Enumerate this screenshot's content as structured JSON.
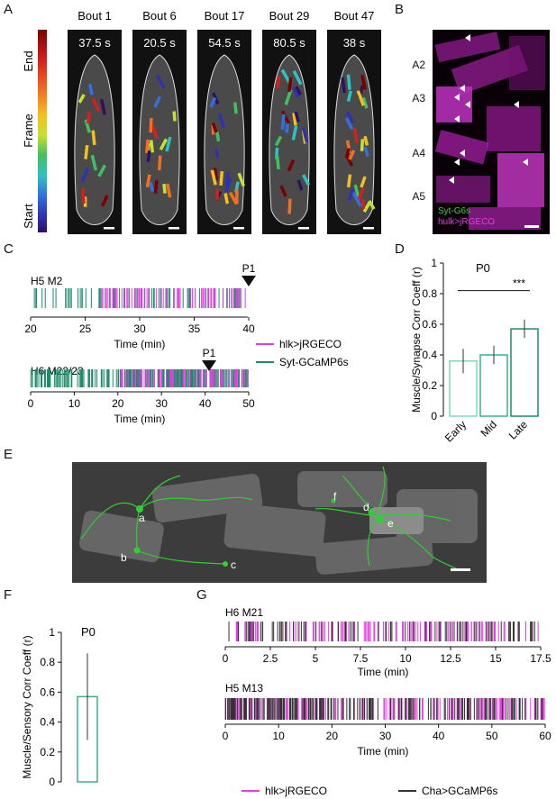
{
  "panels": {
    "A": {
      "label": "A",
      "colorbar": {
        "end": "End",
        "frame": "Frame",
        "start": "Start",
        "colors": [
          "#7a0000",
          "#d42020",
          "#f07020",
          "#f2c020",
          "#c8e030",
          "#40c060",
          "#30c0c0",
          "#3070e0",
          "#3030b0",
          "#301060"
        ]
      },
      "bouts": [
        {
          "title": "Bout 1",
          "time": "37.5 s"
        },
        {
          "title": "Bout 6",
          "time": "20.5 s"
        },
        {
          "title": "Bout 17",
          "time": "54.5 s"
        },
        {
          "title": "Bout 29",
          "time": "80.5 s"
        },
        {
          "title": "Bout 47",
          "time": "38 s"
        }
      ]
    },
    "B": {
      "label": "B",
      "segments": [
        "A2",
        "A3",
        "A4",
        "A5"
      ],
      "legend_green": "Syt-G6s",
      "legend_magenta": "hulk>jRGECO"
    },
    "C": {
      "label": "C",
      "trace1": {
        "name": "H5 M2",
        "marker": "P1",
        "marker_x": 40,
        "ticks": [
          "20",
          "25",
          "30",
          "35",
          "40"
        ],
        "xlabel": "Time (min)"
      },
      "trace2": {
        "name": "H6 M22/23",
        "marker": "P1",
        "marker_x": 41,
        "ticks": [
          "0",
          "10",
          "20",
          "30",
          "40",
          "50"
        ],
        "xlabel": "Time (min)"
      },
      "legend": [
        {
          "label": "hlk>jRGECO",
          "color": "#e23ee0"
        },
        {
          "label": "Syt-GCaMP6s",
          "color": "#1f8a6a"
        }
      ]
    },
    "D": {
      "label": "D"
    },
    "E": {
      "label": "E",
      "cells": [
        "a",
        "b",
        "c",
        "d",
        "e",
        "f"
      ]
    },
    "F": {
      "label": "F"
    },
    "G": {
      "label": "G",
      "trace1": {
        "name": "H6 M21",
        "ticks": [
          "0",
          "2.5",
          "5",
          "7.5",
          "10",
          "12.5",
          "15",
          "17.5"
        ],
        "xlabel": "Time (min)"
      },
      "trace2": {
        "name": "H5 M13",
        "ticks": [
          "0",
          "10",
          "20",
          "30",
          "40",
          "50",
          "60"
        ],
        "xlabel": "Time (min)"
      },
      "legend": [
        {
          "label": "hlk>jRGECO",
          "color": "#e23ee0"
        },
        {
          "label": "Cha>GCaMP6s",
          "color": "#333333"
        }
      ]
    }
  },
  "chart_data": [
    {
      "type": "bar",
      "panel": "D",
      "title": "P0",
      "ylabel": "Muscle/Synapse Corr Coeff (r)",
      "categories": [
        "Early",
        "Mid",
        "Late"
      ],
      "values": [
        0.36,
        0.4,
        0.57
      ],
      "errors": [
        0.08,
        0.06,
        0.06
      ],
      "ylim": [
        0,
        1
      ],
      "yticks": [
        "0",
        "0.2",
        "0.4",
        "0.6",
        "0.8",
        "1"
      ],
      "significance": "***",
      "colors": [
        "#7fd8b8",
        "#3cb08a",
        "#1f8a6a"
      ]
    },
    {
      "type": "bar",
      "panel": "F",
      "title": "P0",
      "ylabel": "Muscle/Sensory Corr Coeff (r)",
      "categories": [
        ""
      ],
      "values": [
        0.57
      ],
      "errors": [
        0.29
      ],
      "ylim": [
        0,
        1
      ],
      "yticks": [
        "0",
        "0.2",
        "0.4",
        "0.6",
        "0.8",
        "1"
      ],
      "colors": [
        "#3cb08a"
      ]
    }
  ]
}
